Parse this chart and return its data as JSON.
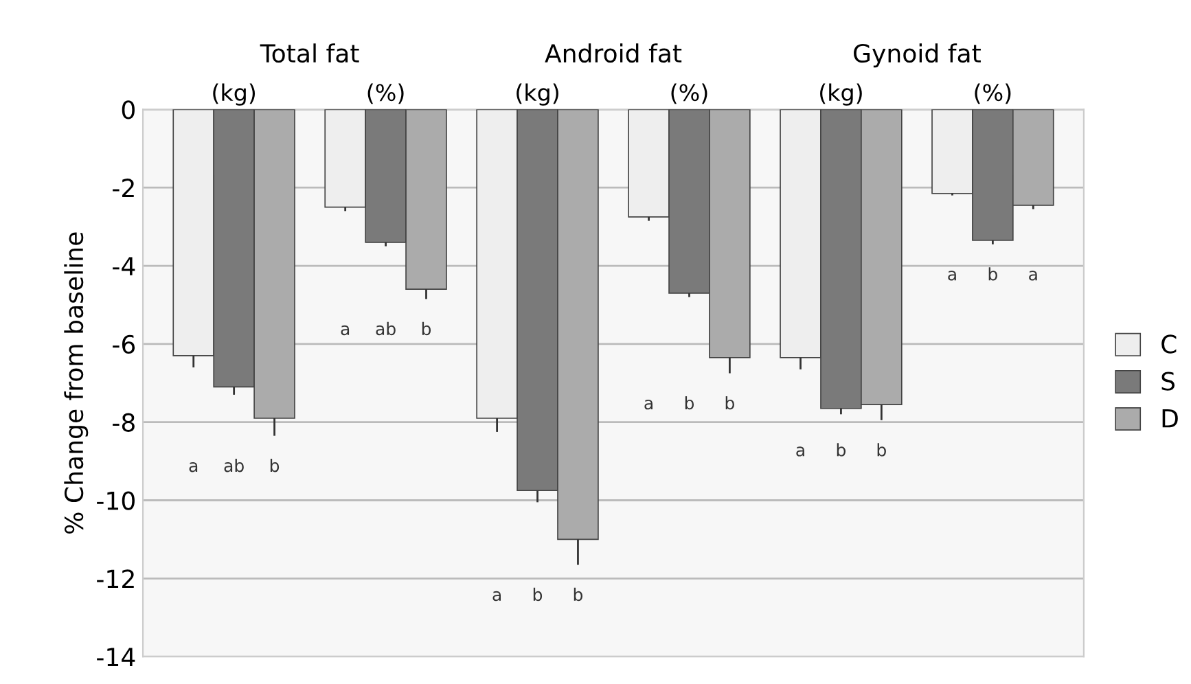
{
  "chart_data": {
    "type": "bar",
    "ylabel": "% Change from baseline",
    "categories": [
      "(kg)",
      "(%)",
      "(kg)",
      "(%)",
      "(kg)",
      "(%)"
    ],
    "series": [
      {
        "name": "C",
        "color": "#eeeeee",
        "values": [
          -6.3,
          -2.5,
          -7.9,
          -2.75,
          -6.35,
          -2.15
        ],
        "errors": [
          0.3,
          0.1,
          0.35,
          0.1,
          0.3,
          0.05
        ]
      },
      {
        "name": "S",
        "color": "#7a7a7a",
        "values": [
          -7.1,
          -3.4,
          -9.75,
          -4.7,
          -7.65,
          -3.35
        ],
        "errors": [
          0.2,
          0.1,
          0.3,
          0.1,
          0.15,
          0.1
        ]
      },
      {
        "name": "D",
        "color": "#ababab",
        "values": [
          -7.9,
          -4.6,
          -11.0,
          -6.35,
          -7.55,
          -2.45
        ],
        "errors": [
          0.45,
          0.25,
          0.65,
          0.4,
          0.4,
          0.1
        ]
      }
    ],
    "ylim": [
      -14,
      0
    ],
    "yticks": [
      0,
      -2,
      -4,
      -6,
      -8,
      -10,
      -12,
      -14
    ],
    "grid": "y",
    "legend": "right",
    "annotations": [
      "Total fat",
      "Android fat",
      "Gynoid fat",
      "a ab b",
      "a ab b",
      "a b b",
      "a b b",
      "a b b",
      "a b a"
    ]
  }
}
